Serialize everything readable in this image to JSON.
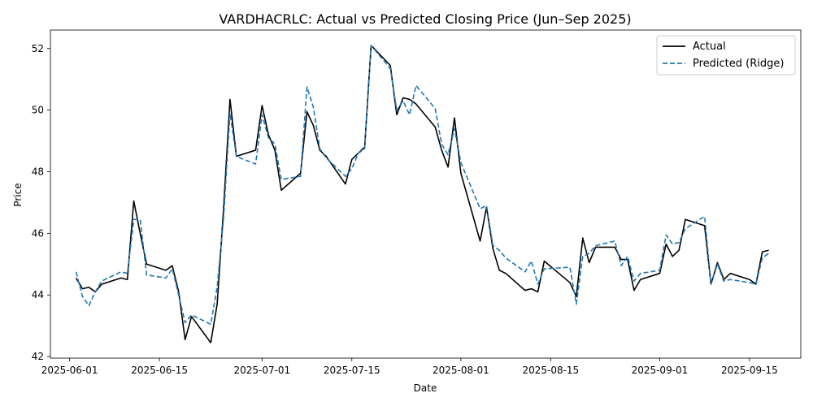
{
  "chart_data": {
    "type": "line",
    "title": "VARDHACRLC: Actual vs Predicted Closing Price (Jun–Sep 2025)",
    "xlabel": "Date",
    "ylabel": "Price",
    "xlim": [
      "2025-05-29",
      "2025-09-23"
    ],
    "ylim": [
      41.95,
      52.6
    ],
    "x_ticks": [
      "2025-06-01",
      "2025-06-15",
      "2025-07-01",
      "2025-07-15",
      "2025-08-01",
      "2025-08-15",
      "2025-09-01",
      "2025-09-15"
    ],
    "y_ticks": [
      42,
      44,
      46,
      48,
      50,
      52
    ],
    "grid": false,
    "legend_position": "top-right",
    "x": [
      "2025-06-02",
      "2025-06-03",
      "2025-06-04",
      "2025-06-05",
      "2025-06-06",
      "2025-06-09",
      "2025-06-10",
      "2025-06-11",
      "2025-06-12",
      "2025-06-13",
      "2025-06-16",
      "2025-06-17",
      "2025-06-18",
      "2025-06-19",
      "2025-06-20",
      "2025-06-23",
      "2025-06-24",
      "2025-06-25",
      "2025-06-26",
      "2025-06-27",
      "2025-06-30",
      "2025-07-01",
      "2025-07-02",
      "2025-07-03",
      "2025-07-04",
      "2025-07-07",
      "2025-07-08",
      "2025-07-09",
      "2025-07-10",
      "2025-07-11",
      "2025-07-14",
      "2025-07-15",
      "2025-07-16",
      "2025-07-17",
      "2025-07-18",
      "2025-07-21",
      "2025-07-22",
      "2025-07-23",
      "2025-07-24",
      "2025-07-25",
      "2025-07-28",
      "2025-07-29",
      "2025-07-30",
      "2025-07-31",
      "2025-08-01",
      "2025-08-04",
      "2025-08-05",
      "2025-08-06",
      "2025-08-07",
      "2025-08-08",
      "2025-08-11",
      "2025-08-12",
      "2025-08-13",
      "2025-08-14",
      "2025-08-18",
      "2025-08-19",
      "2025-08-20",
      "2025-08-21",
      "2025-08-22",
      "2025-08-25",
      "2025-08-26",
      "2025-08-27",
      "2025-08-28",
      "2025-08-29",
      "2025-09-01",
      "2025-09-02",
      "2025-09-03",
      "2025-09-04",
      "2025-09-05",
      "2025-09-08",
      "2025-09-09",
      "2025-09-10",
      "2025-09-11",
      "2025-09-12",
      "2025-09-15",
      "2025-09-16",
      "2025-09-17",
      "2025-09-18"
    ],
    "series": [
      {
        "name": "Actual",
        "color": "#000000",
        "dash": "solid",
        "values": [
          44.55,
          44.2,
          44.25,
          44.1,
          44.35,
          44.55,
          44.5,
          47.05,
          46.0,
          45.0,
          44.8,
          44.95,
          44.1,
          42.55,
          43.3,
          42.45,
          43.7,
          46.8,
          50.35,
          48.5,
          48.7,
          50.15,
          49.2,
          48.7,
          47.4,
          47.95,
          49.95,
          49.5,
          48.7,
          48.5,
          47.6,
          48.4,
          48.6,
          48.8,
          52.1,
          51.45,
          49.85,
          50.4,
          50.35,
          50.2,
          49.45,
          48.7,
          48.15,
          49.75,
          47.95,
          45.75,
          46.85,
          45.5,
          44.8,
          44.7,
          44.15,
          44.2,
          44.1,
          45.1,
          44.4,
          43.95,
          45.85,
          45.05,
          45.55,
          45.55,
          45.15,
          45.15,
          44.15,
          44.5,
          44.7,
          45.65,
          45.25,
          45.45,
          46.45,
          46.25,
          44.35,
          45.05,
          44.5,
          44.7,
          44.5,
          44.35,
          45.4,
          45.45
        ]
      },
      {
        "name": "Predicted (Ridge)",
        "color": "#1f77b4",
        "dash": "dashed",
        "values": [
          44.75,
          43.95,
          43.65,
          44.1,
          44.45,
          44.75,
          44.7,
          46.45,
          46.45,
          44.65,
          44.55,
          44.85,
          44.0,
          43.1,
          43.35,
          43.05,
          44.25,
          46.5,
          49.9,
          48.5,
          48.25,
          49.85,
          49.1,
          48.9,
          47.75,
          47.85,
          50.75,
          50.1,
          48.75,
          48.45,
          47.85,
          48.1,
          48.6,
          48.75,
          52.1,
          51.35,
          50.0,
          50.3,
          49.85,
          50.8,
          50.05,
          48.9,
          48.55,
          49.4,
          48.3,
          46.8,
          46.9,
          45.6,
          45.45,
          45.2,
          44.75,
          45.1,
          44.35,
          44.85,
          44.9,
          43.7,
          45.25,
          45.35,
          45.6,
          45.75,
          44.95,
          45.25,
          44.45,
          44.7,
          44.8,
          45.95,
          45.65,
          45.7,
          46.15,
          46.55,
          44.35,
          45.0,
          44.45,
          44.5,
          44.4,
          44.35,
          45.2,
          45.35
        ]
      }
    ]
  }
}
